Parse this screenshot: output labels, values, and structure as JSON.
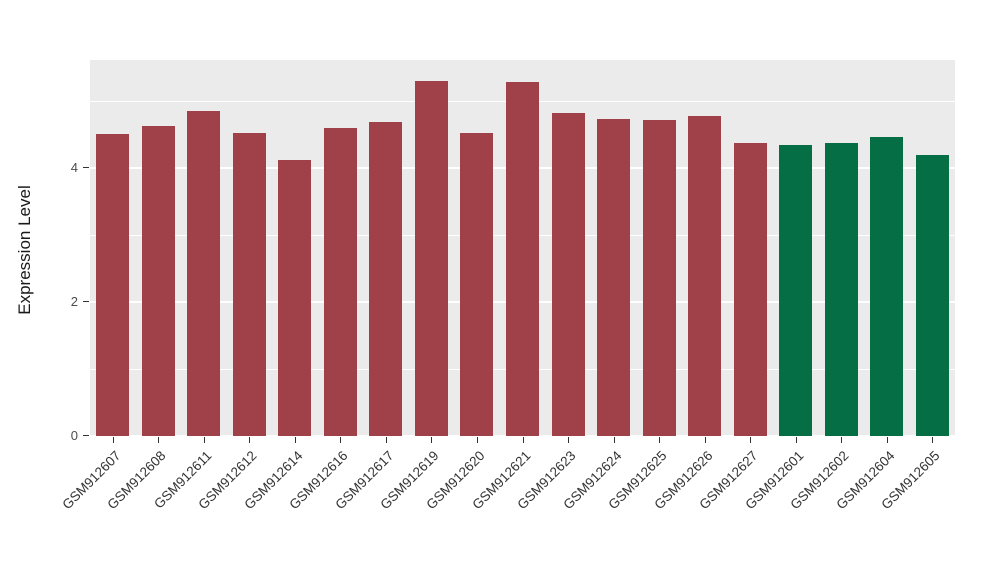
{
  "chart_data": {
    "type": "bar",
    "title": "",
    "xlabel": "",
    "ylabel": "Expression Level",
    "ylim": [
      0,
      5.6
    ],
    "y_major_ticks": [
      0,
      2,
      4
    ],
    "y_minor_ticks": [
      1,
      3,
      5
    ],
    "grid": "on",
    "legend": "none",
    "panel_background": "#EBEBEB",
    "gridline_color": "#FFFFFF",
    "categories": [
      "GSM912607",
      "GSM912608",
      "GSM912611",
      "GSM912612",
      "GSM912614",
      "GSM912616",
      "GSM912617",
      "GSM912619",
      "GSM912620",
      "GSM912621",
      "GSM912623",
      "GSM912624",
      "GSM912625",
      "GSM912626",
      "GSM912627",
      "GSM912601",
      "GSM912602",
      "GSM912604",
      "GSM912605"
    ],
    "values": [
      4.5,
      4.63,
      4.85,
      4.52,
      4.12,
      4.6,
      4.68,
      5.3,
      4.52,
      5.28,
      4.82,
      4.73,
      4.71,
      4.78,
      4.38,
      4.35,
      4.38,
      4.47,
      4.2
    ],
    "bar_colors": [
      "#A04149",
      "#A04149",
      "#A04149",
      "#A04149",
      "#A04149",
      "#A04149",
      "#A04149",
      "#A04149",
      "#A04149",
      "#A04149",
      "#A04149",
      "#A04149",
      "#A04149",
      "#A04149",
      "#A04149",
      "#066E45",
      "#066E45",
      "#066E45",
      "#066E45"
    ],
    "group_colors": {
      "left_group": "#A04149",
      "right_group": "#066E45"
    }
  }
}
